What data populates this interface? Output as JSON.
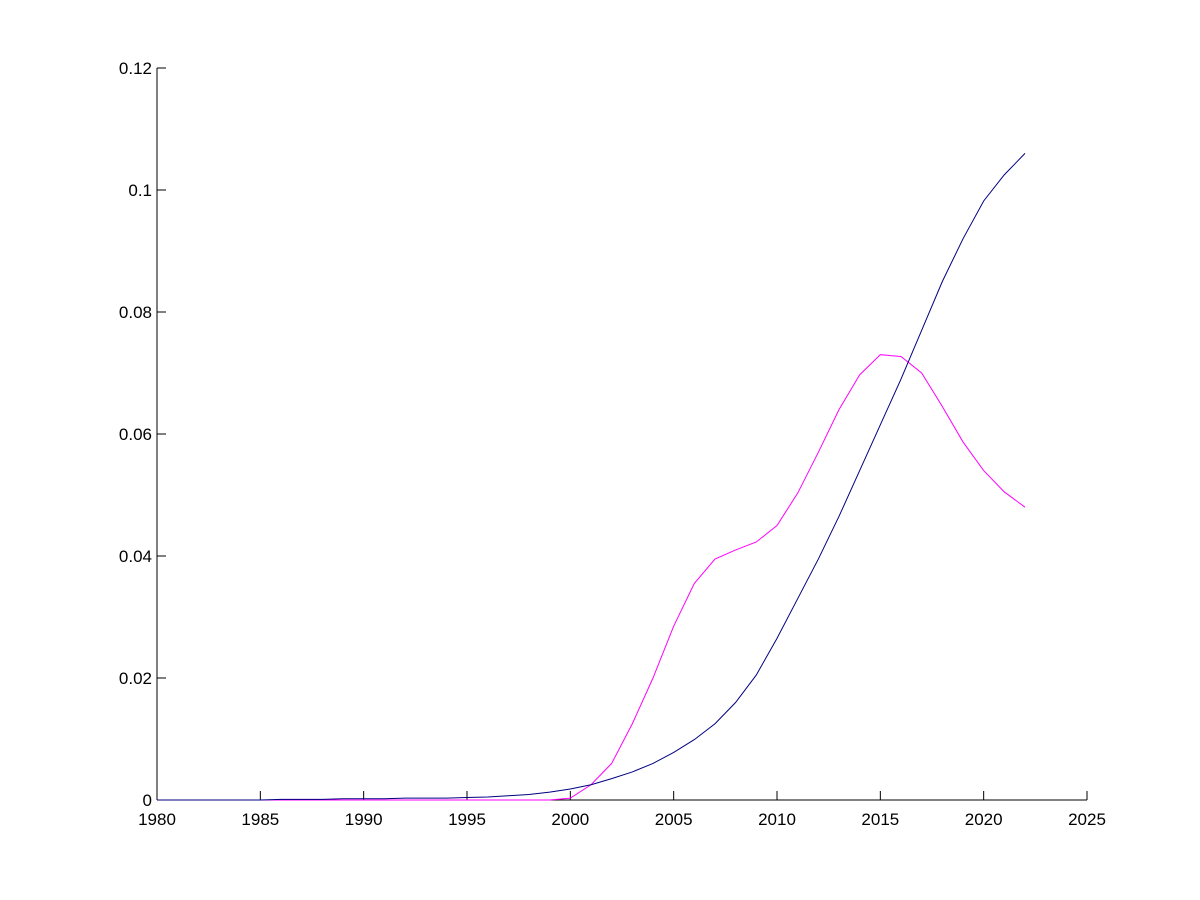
{
  "chart_data": {
    "type": "line",
    "x": [
      1980,
      1981,
      1982,
      1983,
      1984,
      1985,
      1986,
      1987,
      1988,
      1989,
      1990,
      1991,
      1992,
      1993,
      1994,
      1995,
      1996,
      1997,
      1998,
      1999,
      2000,
      2001,
      2002,
      2003,
      2004,
      2005,
      2006,
      2007,
      2008,
      2009,
      2010,
      2011,
      2012,
      2013,
      2014,
      2015,
      2016,
      2017,
      2018,
      2019,
      2020,
      2021,
      2022
    ],
    "series": [
      {
        "color": "#000080",
        "values": [
          0,
          0,
          0,
          0,
          0,
          0,
          0.0001,
          0.0001,
          0.0001,
          0.0002,
          0.0002,
          0.0002,
          0.0003,
          0.0003,
          0.0003,
          0.0004,
          0.0005,
          0.0007,
          0.0009,
          0.0013,
          0.0018,
          0.0025,
          0.0035,
          0.0046,
          0.006,
          0.0078,
          0.0099,
          0.0125,
          0.016,
          0.0205,
          0.0265,
          0.033,
          0.0395,
          0.0465,
          0.054,
          0.0615,
          0.069,
          0.077,
          0.085,
          0.092,
          0.0982,
          0.1025,
          0.106
        ]
      },
      {
        "color": "#ff00ff",
        "values": [
          0,
          0,
          0,
          0,
          0,
          0,
          0,
          0,
          0,
          0,
          0,
          0,
          0,
          0,
          0,
          0,
          0,
          0,
          0,
          0,
          0.0003,
          0.0025,
          0.006,
          0.0125,
          0.02,
          0.0285,
          0.0355,
          0.0395,
          0.041,
          0.0423,
          0.045,
          0.0503,
          0.057,
          0.064,
          0.0697,
          0.073,
          0.0727,
          0.07,
          0.0645,
          0.0587,
          0.054,
          0.0505,
          0.048
        ]
      }
    ],
    "xlim": [
      1980,
      2025
    ],
    "xticks": [
      1980,
      1985,
      1990,
      1995,
      2000,
      2005,
      2010,
      2015,
      2020,
      2025
    ],
    "ylim": [
      0,
      0.12
    ],
    "yticks": [
      0,
      0.02,
      0.04,
      0.06,
      0.08,
      0.1,
      0.12
    ]
  }
}
